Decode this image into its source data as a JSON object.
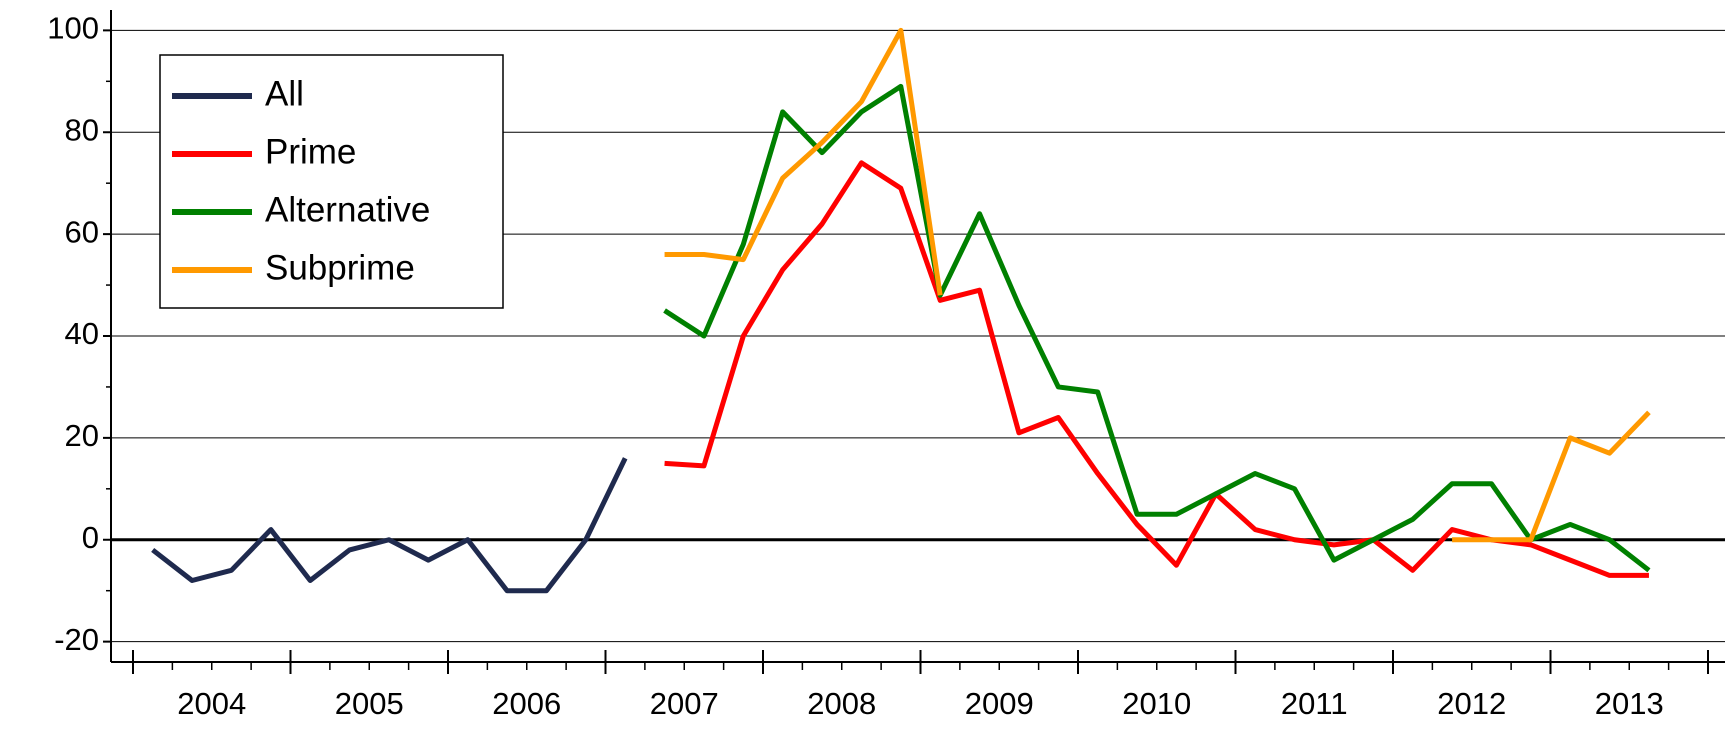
{
  "chart_data": {
    "type": "line",
    "x": [
      2004.125,
      2004.375,
      2004.625,
      2004.875,
      2005.125,
      2005.375,
      2005.625,
      2005.875,
      2006.125,
      2006.375,
      2006.625,
      2006.875,
      2007.125,
      2007.375,
      2007.625,
      2007.875,
      2008.125,
      2008.375,
      2008.625,
      2008.875,
      2009.125,
      2009.375,
      2009.625,
      2009.875,
      2010.125,
      2010.375,
      2010.625,
      2010.875,
      2011.125,
      2011.375,
      2011.625,
      2011.875,
      2012.125,
      2012.375,
      2012.625,
      2012.875,
      2013.125,
      2013.375,
      2013.625
    ],
    "series": [
      {
        "name": "All",
        "color": "#1f2a4e",
        "values": [
          -2,
          -8,
          -6,
          2,
          -8,
          -2,
          0,
          -4,
          0,
          -10,
          -10,
          0,
          16,
          null,
          null,
          null,
          null,
          null,
          null,
          null,
          null,
          null,
          null,
          null,
          null,
          null,
          null,
          null,
          null,
          null,
          null,
          null,
          null,
          null,
          null,
          null,
          null,
          null,
          null
        ]
      },
      {
        "name": "Prime",
        "color": "#ff0000",
        "values": [
          null,
          null,
          null,
          null,
          null,
          null,
          null,
          null,
          null,
          null,
          null,
          null,
          null,
          15,
          14.5,
          40,
          53,
          62,
          74,
          69,
          47,
          49,
          21,
          24,
          13,
          3,
          -5,
          9,
          2,
          0,
          -1,
          0,
          -6,
          2,
          0,
          -1,
          -4,
          -7,
          -7
        ]
      },
      {
        "name": "Alternative",
        "color": "#008000",
        "values": [
          null,
          null,
          null,
          null,
          null,
          null,
          null,
          null,
          null,
          null,
          null,
          null,
          null,
          45,
          40,
          58,
          84,
          76,
          84,
          89,
          48,
          64,
          46,
          30,
          29,
          5,
          5,
          9,
          13,
          10,
          -4,
          0,
          4,
          11,
          11,
          0,
          3,
          0,
          -6
        ]
      },
      {
        "name": "Subprime",
        "color": "#ff9900",
        "values": [
          null,
          null,
          null,
          null,
          null,
          null,
          null,
          null,
          null,
          null,
          null,
          null,
          null,
          56,
          56,
          55,
          71,
          78,
          86,
          100,
          48,
          null,
          null,
          null,
          null,
          null,
          null,
          null,
          null,
          null,
          null,
          null,
          null,
          0,
          0,
          0,
          20,
          17,
          25
        ]
      }
    ],
    "xlim": [
      2004,
      2014
    ],
    "x_boundaries": [
      2004,
      2005,
      2006,
      2007,
      2008,
      2009,
      2010,
      2011,
      2012,
      2013,
      2014
    ],
    "xticks": [
      {
        "value": 2004.5,
        "label": "2004"
      },
      {
        "value": 2005.5,
        "label": "2005"
      },
      {
        "value": 2006.5,
        "label": "2006"
      },
      {
        "value": 2007.5,
        "label": "2007"
      },
      {
        "value": 2008.5,
        "label": "2008"
      },
      {
        "value": 2009.5,
        "label": "2009"
      },
      {
        "value": 2010.5,
        "label": "2010"
      },
      {
        "value": 2011.5,
        "label": "2011"
      },
      {
        "value": 2012.5,
        "label": "2012"
      },
      {
        "value": 2013.5,
        "label": "2013"
      }
    ],
    "ylim": [
      -24,
      104
    ],
    "yticks": [
      -20,
      0,
      20,
      40,
      60,
      80,
      100
    ],
    "grid": true,
    "legend": "top-left"
  }
}
